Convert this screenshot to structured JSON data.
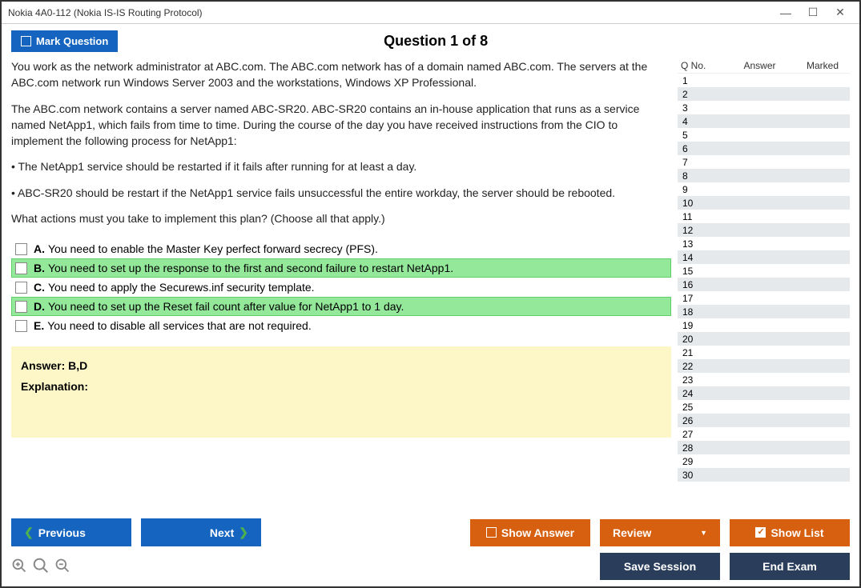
{
  "window": {
    "title": "Nokia 4A0-112 (Nokia IS-IS Routing Protocol)"
  },
  "header": {
    "mark_label": "Mark Question",
    "question_title": "Question 1 of 8"
  },
  "question": {
    "para1": "You work as the network administrator at ABC.com. The ABC.com network has of a domain named ABC.com. The servers at the ABC.com network run Windows Server 2003 and the workstations, Windows XP Professional.",
    "para2": "The ABC.com network contains a server named ABC-SR20. ABC-SR20 contains an in-house application that runs as a service named NetApp1, which fails from time to time. During the course of the day you have received instructions from the CIO to implement the following process for NetApp1:",
    "bullet1": "• The NetApp1 service should be restarted if it fails after running for at least a day.",
    "bullet2": "• ABC-SR20 should be restart if the NetApp1 service fails unsuccessful the entire workday, the server should be rebooted.",
    "prompt": "What actions must you take to implement this plan? (Choose all that apply.)"
  },
  "options": {
    "A": {
      "letter": "A.",
      "text": "You need to enable the Master Key perfect forward secrecy (PFS)."
    },
    "B": {
      "letter": "B.",
      "text": "You need to set up the response to the first and second failure to restart NetApp1."
    },
    "C": {
      "letter": "C.",
      "text": "You need to apply the Securews.inf security template."
    },
    "D": {
      "letter": "D.",
      "text": "You need to set up the Reset fail count after value for NetApp1 to 1 day."
    },
    "E": {
      "letter": "E.",
      "text": "You need to disable all services that are not required."
    }
  },
  "answer_box": {
    "answer": "Answer: B,D",
    "explanation": "Explanation:"
  },
  "side": {
    "h1": "Q No.",
    "h2": "Answer",
    "h3": "Marked",
    "rowcount": 30
  },
  "buttons": {
    "previous": "Previous",
    "next": "Next",
    "show_answer": "Show Answer",
    "review": "Review",
    "show_list": "Show List",
    "save": "Save Session",
    "end": "End Exam"
  },
  "colors": {
    "blue": "#1565c0",
    "orange": "#d6600f",
    "dark": "#2a3e5c",
    "correct_bg": "#94e89a",
    "answer_bg": "#fdf6c7"
  }
}
